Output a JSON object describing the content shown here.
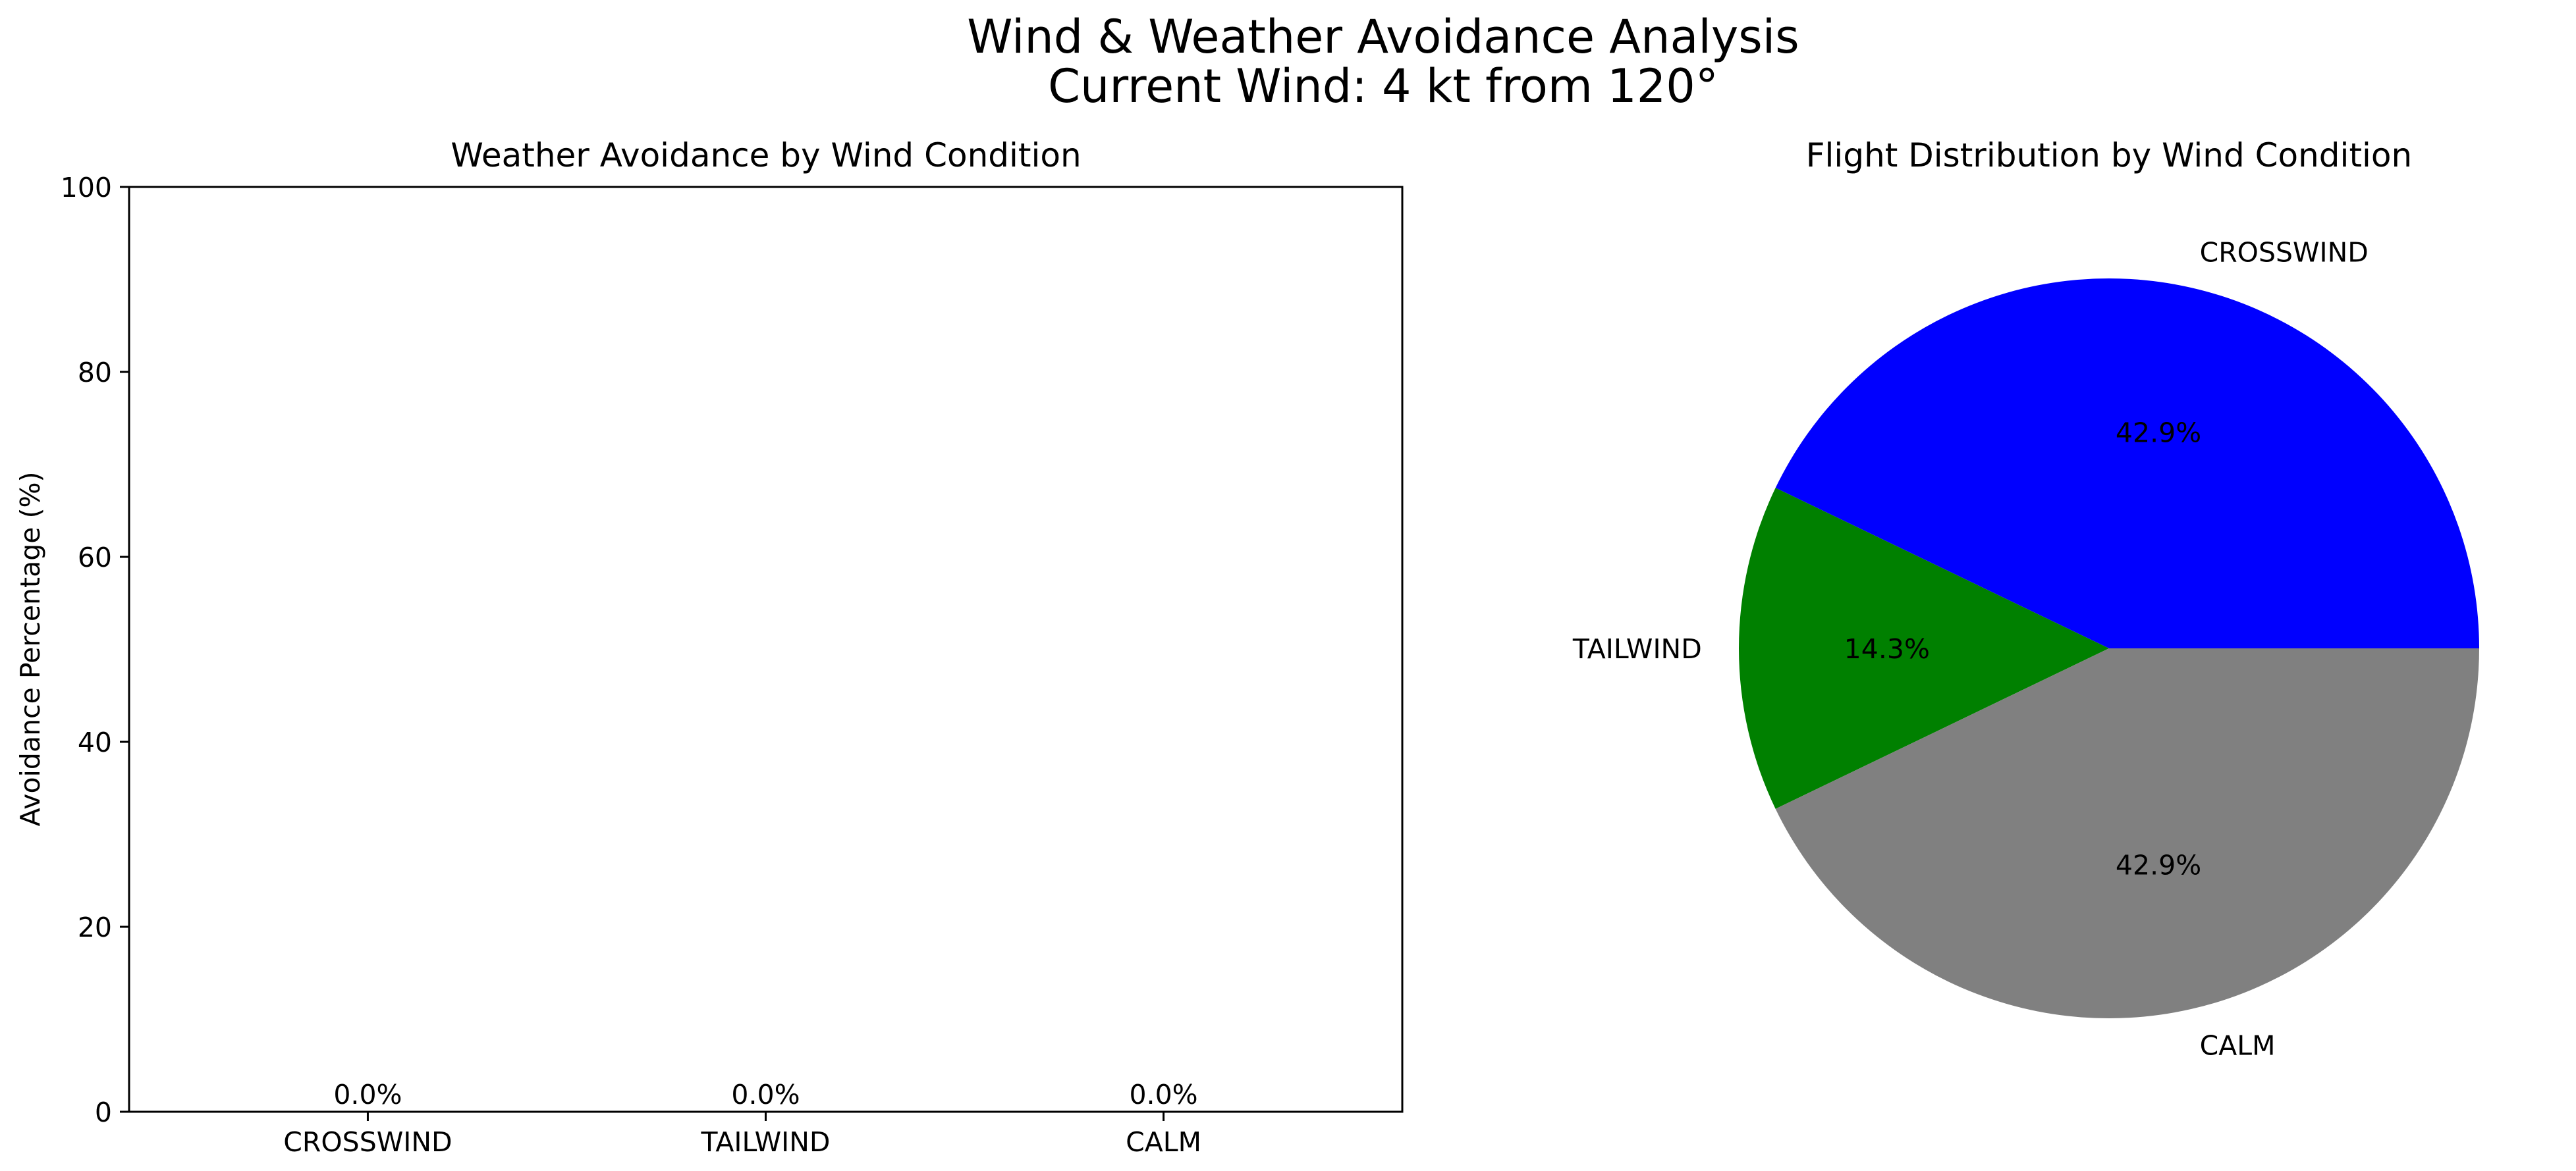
{
  "figure": {
    "title_line1": "Wind & Weather Avoidance Analysis",
    "title_line2": "Current Wind: 4 kt from 120°"
  },
  "chart_data": [
    {
      "type": "bar",
      "title": "Weather Avoidance by Wind Condition",
      "xlabel": "",
      "ylabel": "Avoidance Percentage (%)",
      "categories": [
        "CROSSWIND",
        "TAILWIND",
        "CALM"
      ],
      "values": [
        0.0,
        0.0,
        0.0
      ],
      "data_labels": [
        "0.0%",
        "0.0%",
        "0.0%"
      ],
      "ylim": [
        0,
        100
      ],
      "yticks": [
        0,
        20,
        40,
        60,
        80,
        100
      ],
      "ytick_labels": [
        "0",
        "20",
        "40",
        "60",
        "80",
        "100"
      ],
      "grid": false
    },
    {
      "type": "pie",
      "title": "Flight Distribution by Wind Condition",
      "labels": [
        "CROSSWIND",
        "TAILWIND",
        "CALM"
      ],
      "values": [
        42.9,
        14.3,
        42.9
      ],
      "pct_labels": [
        "42.9%",
        "14.3%",
        "42.9%"
      ],
      "colors": [
        "#0000ff",
        "#008000",
        "#808080"
      ]
    }
  ]
}
